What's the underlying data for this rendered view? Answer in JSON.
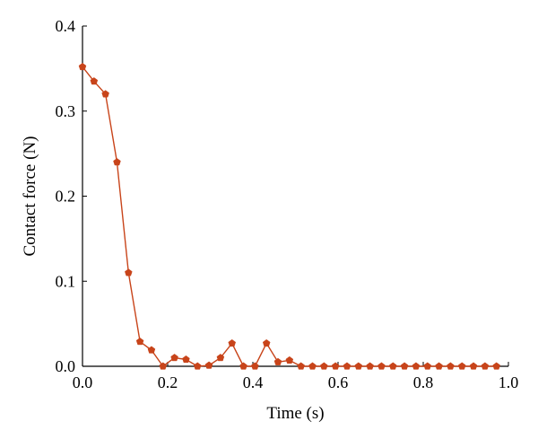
{
  "chart_data": {
    "type": "line",
    "title": "",
    "xlabel": "Time (s)",
    "ylabel": "Contact force (N)",
    "xlim": [
      0,
      1.0
    ],
    "ylim": [
      0,
      0.4
    ],
    "x_ticks": [
      "0.0",
      "0.2",
      "0.4",
      "0.6",
      "0.8",
      "1.0"
    ],
    "y_ticks": [
      "0.0",
      "0.1",
      "0.2",
      "0.3",
      "0.4"
    ],
    "x_tick_values": [
      0,
      0.2,
      0.4,
      0.6,
      0.8,
      1.0
    ],
    "y_tick_values": [
      0,
      0.1,
      0.2,
      0.3,
      0.4
    ],
    "grid": false,
    "legend": "none",
    "series": [
      {
        "color": "#c8441a",
        "marker": "pentagon",
        "x": [
          0.0,
          0.027,
          0.054,
          0.081,
          0.108,
          0.135,
          0.162,
          0.189,
          0.216,
          0.243,
          0.27,
          0.297,
          0.324,
          0.351,
          0.378,
          0.405,
          0.432,
          0.459,
          0.486,
          0.513,
          0.54,
          0.567,
          0.594,
          0.621,
          0.648,
          0.675,
          0.702,
          0.729,
          0.756,
          0.783,
          0.81,
          0.837,
          0.864,
          0.891,
          0.918,
          0.945,
          0.972
        ],
        "y": [
          0.352,
          0.335,
          0.32,
          0.24,
          0.11,
          0.029,
          0.019,
          0.0,
          0.01,
          0.008,
          0.0,
          0.001,
          0.01,
          0.027,
          0.0,
          0.0,
          0.027,
          0.005,
          0.007,
          0.0,
          0.0,
          0.0,
          0.0,
          0.0,
          0.0,
          0.0,
          0.0,
          0.0,
          0.0,
          0.0,
          0.0,
          0.0,
          0.0,
          0.0,
          0.0,
          0.0,
          0.0
        ]
      }
    ]
  }
}
